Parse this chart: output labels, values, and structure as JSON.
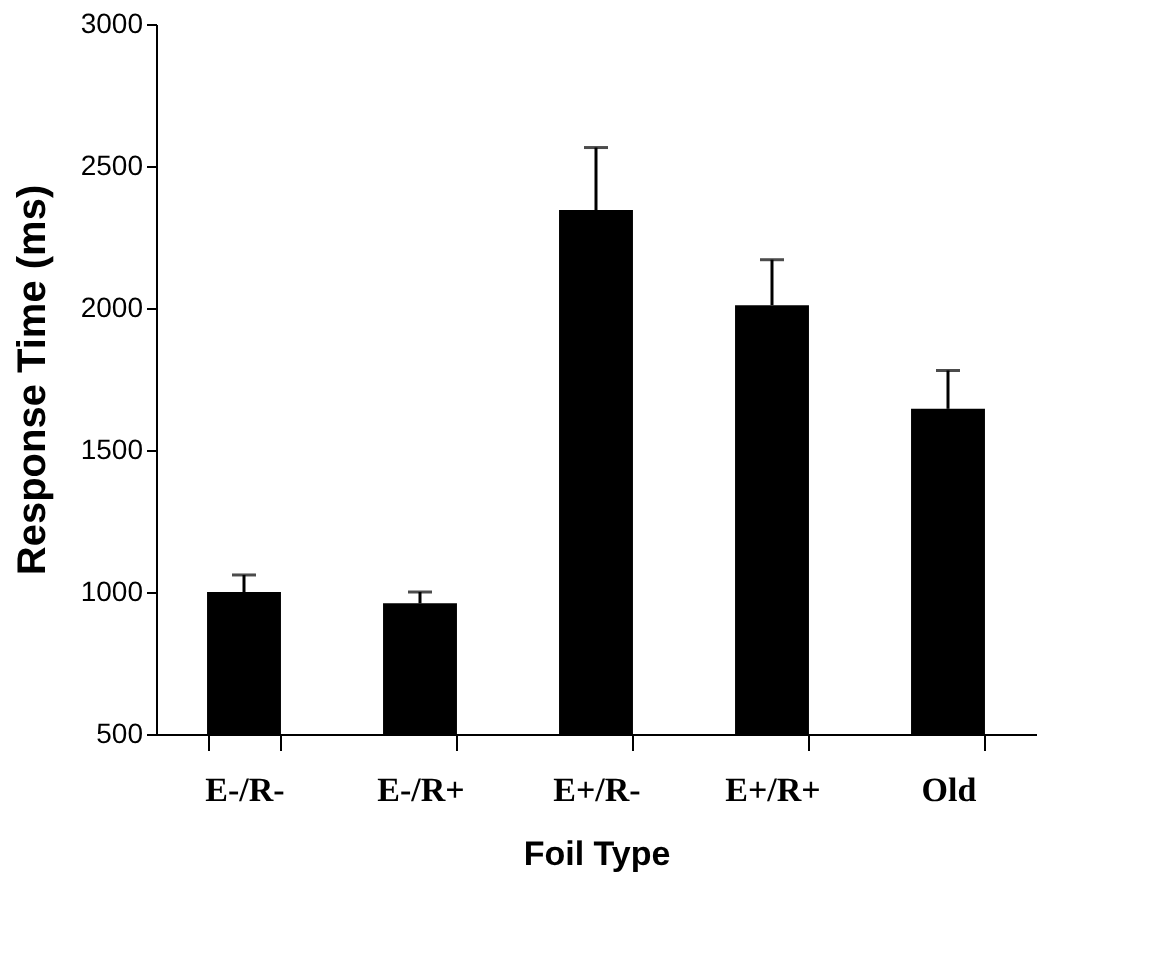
{
  "chart_data": {
    "type": "bar",
    "xlabel": "Foil Type",
    "ylabel": "Response Time (ms)",
    "categories": [
      "E-/R-",
      "E-/R+",
      "E+/R-",
      "E+/R+",
      "Old"
    ],
    "values": [
      1000,
      960,
      2345,
      2010,
      1645
    ],
    "errors": [
      [
        1000,
        1060
      ],
      [
        960,
        1000
      ],
      [
        2345,
        2565
      ],
      [
        2010,
        2170
      ],
      [
        1645,
        1780
      ]
    ],
    "color": "#000000",
    "ylim": [
      500,
      3000
    ],
    "yticks": [
      500,
      1000,
      1500,
      2000,
      2500,
      3000
    ],
    "grid": false
  }
}
